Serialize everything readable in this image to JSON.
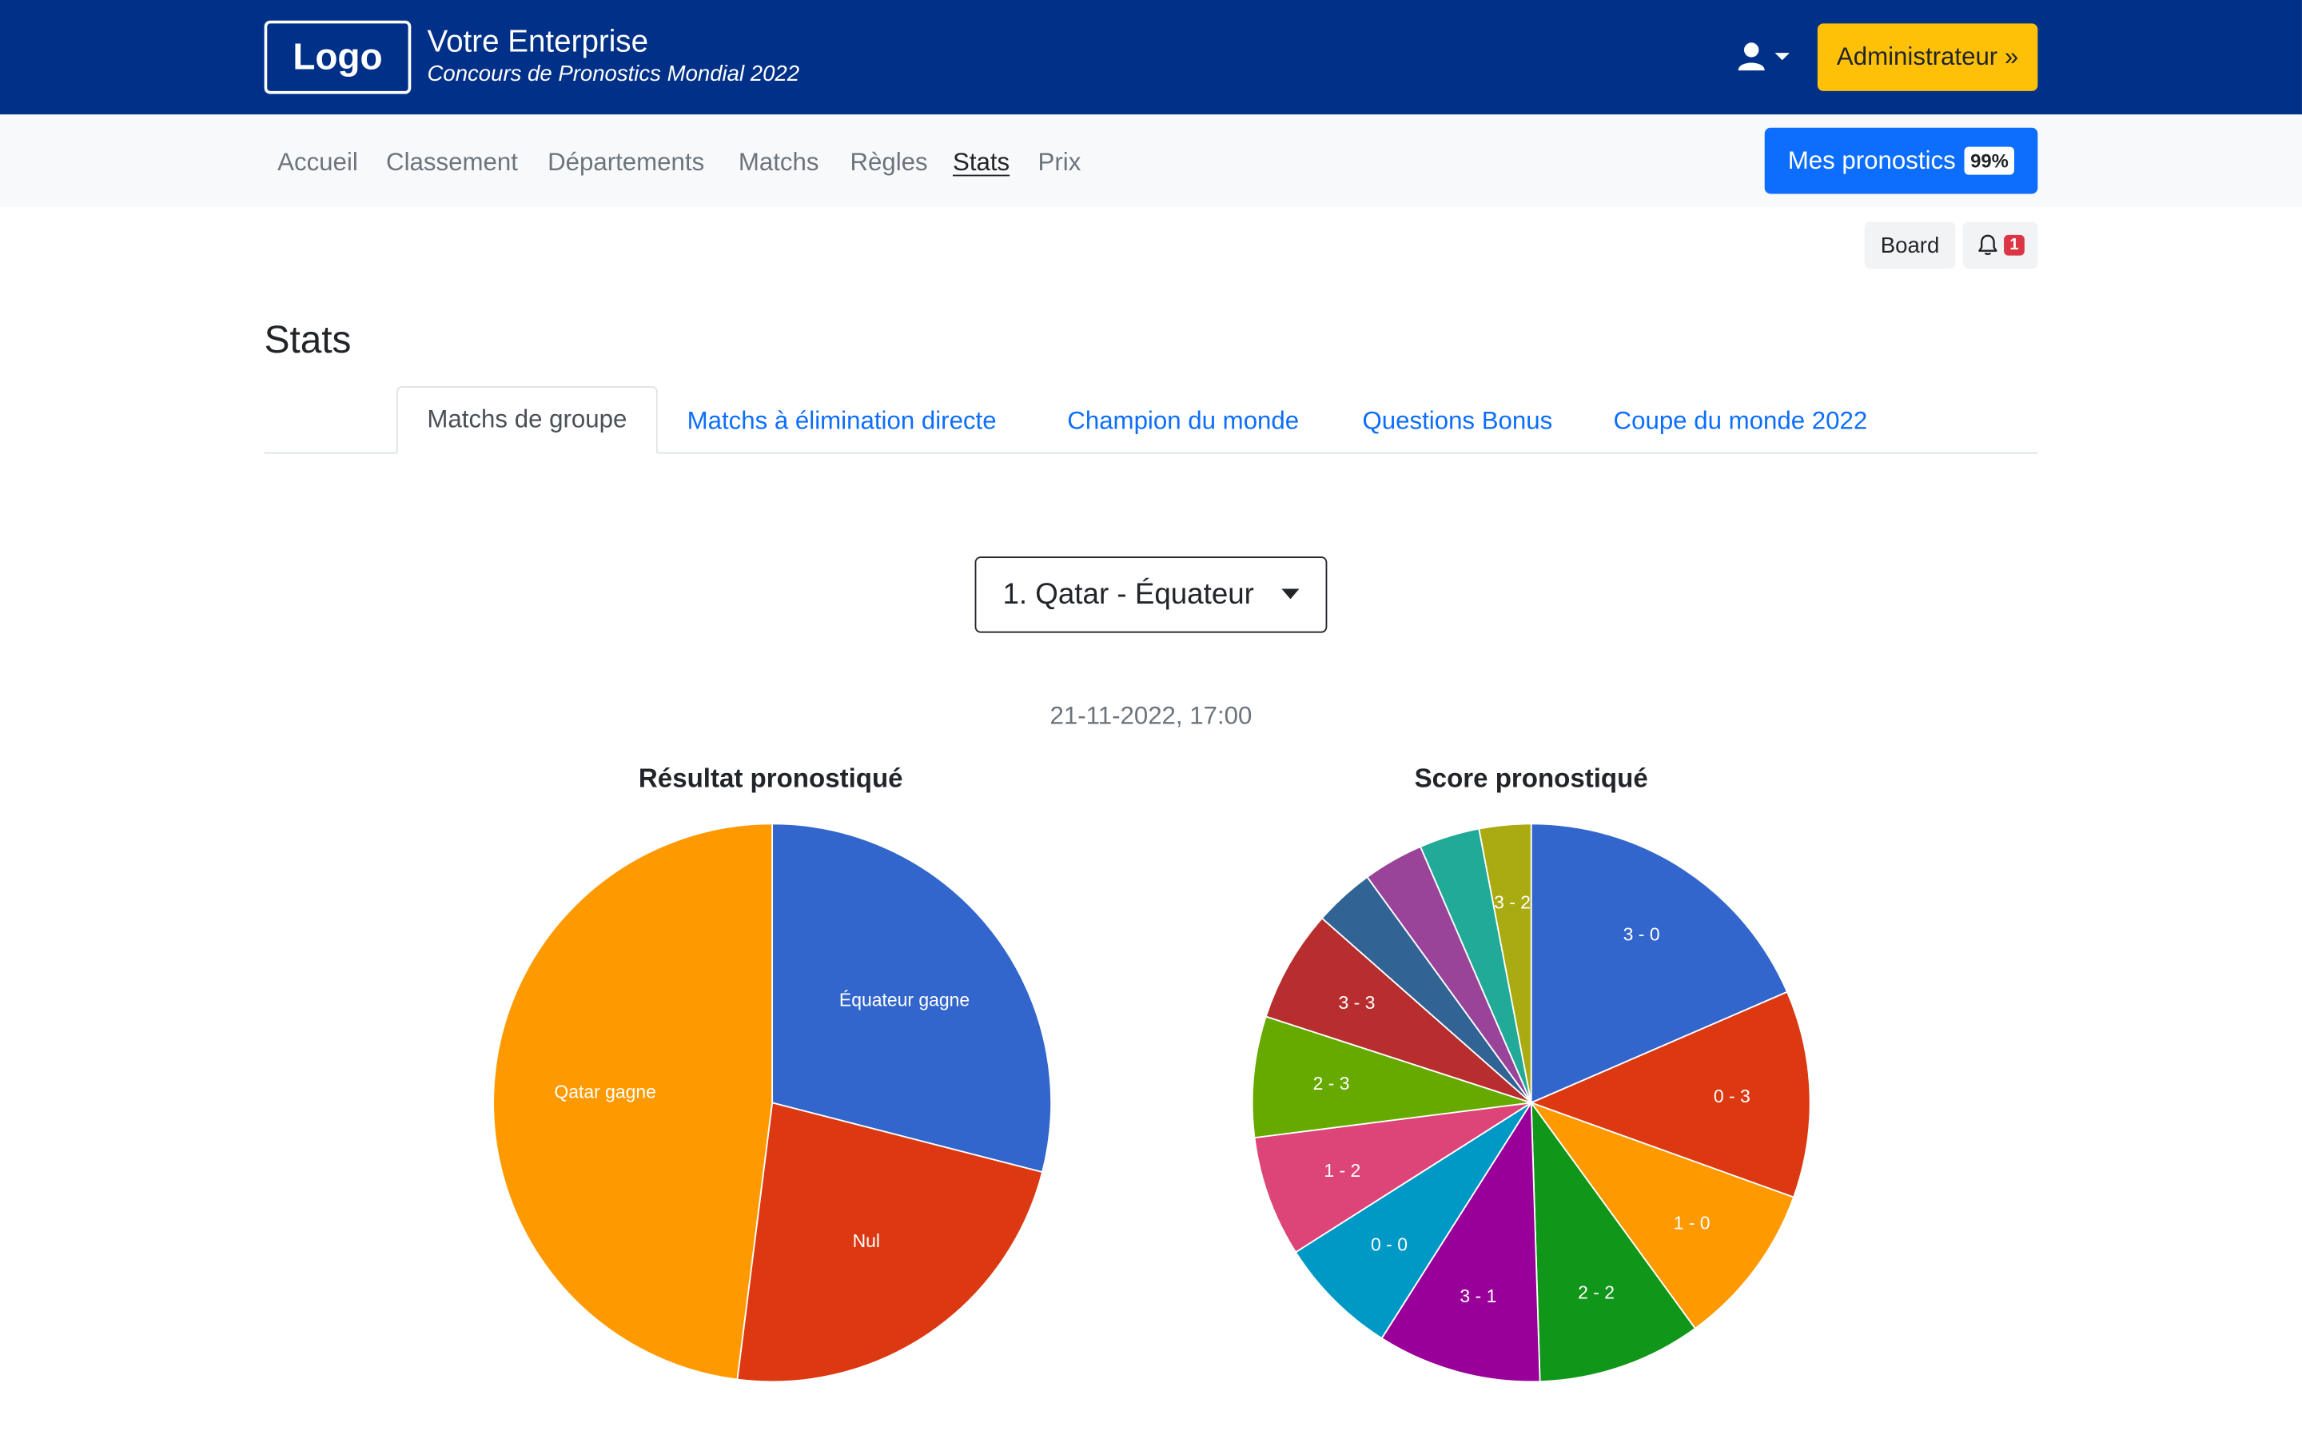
{
  "header": {
    "logo": "Logo",
    "company": "Votre Enterprise",
    "subtitle": "Concours de Pronostics Mondial 2022",
    "admin_button": "Administrateur »"
  },
  "nav": {
    "items": [
      "Accueil",
      "Classement",
      "Départements",
      "Matchs",
      "Règles",
      "Stats",
      "Prix"
    ],
    "active": "Stats",
    "my_predictions_button": "Mes pronostics",
    "my_predictions_pct": "99%"
  },
  "toolbar": {
    "board": "Board",
    "notif_count": "1"
  },
  "page": {
    "title": "Stats"
  },
  "tabs": [
    "Matchs de groupe",
    "Matchs à élimination directe",
    "Champion du monde",
    "Questions Bonus",
    "Coupe du monde 2022"
  ],
  "match_select": {
    "value": "1. Qatar - Équateur"
  },
  "match_datetime": "21-11-2022, 17:00",
  "chart_data": [
    {
      "type": "pie",
      "title": "Résultat pronostiqué",
      "slices": [
        {
          "label": "Équateur gagne",
          "value": 29,
          "color": "#3366cc"
        },
        {
          "label": "Nul",
          "value": 23,
          "color": "#dc3912"
        },
        {
          "label": "Qatar gagne",
          "value": 48,
          "color": "#ff9900"
        }
      ]
    },
    {
      "type": "pie",
      "title": "Score pronostiqué",
      "slices": [
        {
          "label": "3 - 0",
          "value": 18.5,
          "color": "#3366cc"
        },
        {
          "label": "0 - 3",
          "value": 12.0,
          "color": "#dc3912"
        },
        {
          "label": "1 - 0",
          "value": 9.5,
          "color": "#ff9900"
        },
        {
          "label": "2 - 2",
          "value": 9.5,
          "color": "#109618"
        },
        {
          "label": "3 - 1",
          "value": 9.5,
          "color": "#990099"
        },
        {
          "label": "0 - 0",
          "value": 7.0,
          "color": "#0099c6"
        },
        {
          "label": "1 - 2",
          "value": 7.0,
          "color": "#dd4477"
        },
        {
          "label": "2 - 3",
          "value": 7.0,
          "color": "#66aa00"
        },
        {
          "label": "3 - 3",
          "value": 6.5,
          "color": "#b82e2e"
        },
        {
          "label": "",
          "value": 3.5,
          "color": "#316395"
        },
        {
          "label": "",
          "value": 3.5,
          "color": "#994499"
        },
        {
          "label": "",
          "value": 3.5,
          "color": "#22aa99"
        },
        {
          "label": "3 - 2",
          "value": 3.0,
          "color": "#aaaa11"
        }
      ]
    }
  ]
}
